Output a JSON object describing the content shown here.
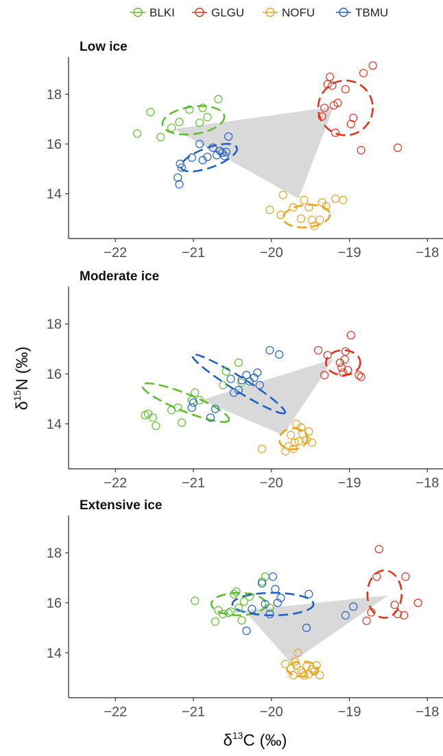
{
  "chart_data": {
    "type": "scatter",
    "legend": {
      "placement": "top-center",
      "entries": [
        {
          "name": "BLKI",
          "color": "#5bbf2c"
        },
        {
          "name": "GLGU",
          "color": "#e0321d"
        },
        {
          "name": "NOFU",
          "color": "#e8a41c"
        },
        {
          "name": "TBMU",
          "color": "#1f5fc6"
        }
      ]
    },
    "xlabel_base": "δ",
    "xlabel_sup": "13",
    "xlabel_tail": "C (‰)",
    "ylabel_base": "δ",
    "ylabel_sup": "15",
    "ylabel_tail": "N (‰)",
    "xlim": [
      -22.6,
      -17.8
    ],
    "ylim": [
      12.2,
      19.5
    ],
    "xticks": [
      -22,
      -21,
      -20,
      -19,
      -18
    ],
    "xtick_labels": [
      "−22",
      "−21",
      "−20",
      "−19",
      "−18"
    ],
    "yticks": [
      14,
      16,
      18
    ],
    "ytick_labels": [
      "14",
      "16",
      "18"
    ],
    "grid": false,
    "hull_color": "#d9d9d9",
    "panels": [
      {
        "title": "Low ice",
        "hull": [
          [
            -21.25,
            16.6
          ],
          [
            -19.2,
            17.5
          ],
          [
            -19.65,
            13.8
          ]
        ],
        "ellipses": [
          {
            "species": "BLKI",
            "cx": -21.0,
            "cy": 16.95,
            "rx": 0.4,
            "ry": 0.55,
            "angle": 8
          },
          {
            "species": "GLGU",
            "cx": -19.05,
            "cy": 17.45,
            "rx": 0.35,
            "ry": 1.1,
            "angle": 0
          },
          {
            "species": "NOFU",
            "cx": -19.55,
            "cy": 13.1,
            "rx": 0.3,
            "ry": 0.45,
            "angle": 5
          },
          {
            "species": "TBMU",
            "cx": -20.8,
            "cy": 15.45,
            "rx": 0.38,
            "ry": 0.4,
            "angle": 20
          }
        ],
        "points": {
          "BLKI": [
            [
              -21.72,
              16.42
            ],
            [
              -21.55,
              17.28
            ],
            [
              -21.42,
              16.28
            ],
            [
              -21.28,
              16.65
            ],
            [
              -21.18,
              16.88
            ],
            [
              -21.05,
              17.38
            ],
            [
              -20.92,
              16.85
            ],
            [
              -20.88,
              17.45
            ],
            [
              -20.82,
              17.08
            ],
            [
              -20.68,
              17.8
            ]
          ],
          "GLGU": [
            [
              -19.35,
              17.1
            ],
            [
              -19.32,
              17.45
            ],
            [
              -19.28,
              18.4
            ],
            [
              -19.25,
              18.7
            ],
            [
              -19.22,
              18.35
            ],
            [
              -19.2,
              17.55
            ],
            [
              -19.18,
              16.45
            ],
            [
              -19.15,
              17.65
            ],
            [
              -19.05,
              18.2
            ],
            [
              -18.98,
              16.8
            ],
            [
              -18.95,
              17.05
            ],
            [
              -18.85,
              15.75
            ],
            [
              -18.82,
              18.85
            ],
            [
              -18.7,
              19.15
            ],
            [
              -18.38,
              15.85
            ]
          ],
          "NOFU": [
            [
              -20.02,
              13.35
            ],
            [
              -19.88,
              13.15
            ],
            [
              -19.85,
              13.95
            ],
            [
              -19.72,
              13.45
            ],
            [
              -19.62,
              13.0
            ],
            [
              -19.58,
              13.75
            ],
            [
              -19.52,
              13.45
            ],
            [
              -19.48,
              12.95
            ],
            [
              -19.45,
              12.7
            ],
            [
              -19.38,
              12.95
            ],
            [
              -19.35,
              13.65
            ],
            [
              -19.3,
              13.5
            ],
            [
              -19.18,
              13.8
            ],
            [
              -19.08,
              13.75
            ]
          ],
          "TBMU": [
            [
              -21.2,
              14.65
            ],
            [
              -21.18,
              14.38
            ],
            [
              -21.17,
              15.2
            ],
            [
              -21.15,
              15.05
            ],
            [
              -21.02,
              15.45
            ],
            [
              -20.92,
              16.0
            ],
            [
              -20.88,
              15.35
            ],
            [
              -20.82,
              15.48
            ],
            [
              -20.75,
              15.85
            ],
            [
              -20.7,
              15.55
            ],
            [
              -20.66,
              15.72
            ],
            [
              -20.63,
              15.65
            ],
            [
              -20.6,
              15.52
            ],
            [
              -20.58,
              15.68
            ],
            [
              -20.55,
              16.3
            ]
          ]
        }
      },
      {
        "title": "Moderate ice",
        "hull": [
          [
            -20.9,
            14.95
          ],
          [
            -19.2,
            16.6
          ],
          [
            -19.85,
            13.55
          ]
        ],
        "ellipses": [
          {
            "species": "BLKI",
            "cx": -21.1,
            "cy": 14.85,
            "rx": 0.6,
            "ry": 0.35,
            "angle": -22
          },
          {
            "species": "GLGU",
            "cx": -19.08,
            "cy": 16.45,
            "rx": 0.22,
            "ry": 0.5,
            "angle": 0
          },
          {
            "species": "NOFU",
            "cx": -19.72,
            "cy": 13.4,
            "rx": 0.18,
            "ry": 0.42,
            "angle": 5
          },
          {
            "species": "TBMU",
            "cx": -20.42,
            "cy": 15.6,
            "rx": 0.7,
            "ry": 0.28,
            "angle": -32
          }
        ],
        "points": {
          "BLKI": [
            [
              -21.62,
              14.35
            ],
            [
              -21.58,
              14.4
            ],
            [
              -21.52,
              14.25
            ],
            [
              -21.48,
              13.92
            ],
            [
              -21.28,
              14.55
            ],
            [
              -21.2,
              14.65
            ],
            [
              -21.15,
              14.05
            ],
            [
              -21.02,
              14.95
            ],
            [
              -20.98,
              15.25
            ],
            [
              -20.92,
              14.95
            ],
            [
              -20.62,
              15.55
            ],
            [
              -20.58,
              16.1
            ],
            [
              -20.42,
              16.45
            ],
            [
              -20.38,
              15.65
            ]
          ],
          "GLGU": [
            [
              -19.4,
              16.95
            ],
            [
              -19.32,
              15.95
            ],
            [
              -19.28,
              16.75
            ],
            [
              -19.12,
              16.45
            ],
            [
              -19.1,
              16.25
            ],
            [
              -19.08,
              16.05
            ],
            [
              -19.06,
              16.58
            ],
            [
              -19.05,
              16.9
            ],
            [
              -19.02,
              16.15
            ],
            [
              -18.98,
              17.55
            ],
            [
              -18.88,
              15.95
            ],
            [
              -18.85,
              15.88
            ]
          ],
          "NOFU": [
            [
              -20.12,
              13.0
            ],
            [
              -19.82,
              12.9
            ],
            [
              -19.78,
              13.1
            ],
            [
              -19.75,
              13.55
            ],
            [
              -19.72,
              13.0
            ],
            [
              -19.7,
              13.25
            ],
            [
              -19.68,
              14.0
            ],
            [
              -19.65,
              13.3
            ],
            [
              -19.62,
              13.85
            ],
            [
              -19.6,
              13.6
            ],
            [
              -19.55,
              13.35
            ],
            [
              -19.52,
              13.7
            ],
            [
              -19.48,
              13.25
            ]
          ],
          "TBMU": [
            [
              -21.02,
              14.65
            ],
            [
              -21.0,
              14.85
            ],
            [
              -20.78,
              14.25
            ],
            [
              -20.72,
              14.6
            ],
            [
              -20.52,
              15.8
            ],
            [
              -20.48,
              15.25
            ],
            [
              -20.42,
              15.35
            ],
            [
              -20.38,
              15.75
            ],
            [
              -20.32,
              15.95
            ],
            [
              -20.28,
              15.7
            ],
            [
              -20.22,
              15.85
            ],
            [
              -20.18,
              16.05
            ],
            [
              -20.15,
              15.55
            ],
            [
              -20.02,
              16.95
            ],
            [
              -19.9,
              16.78
            ]
          ]
        }
      },
      {
        "title": "Extensive ice",
        "hull": [
          [
            -20.35,
            15.7
          ],
          [
            -18.5,
            16.3
          ],
          [
            -19.75,
            13.6
          ]
        ],
        "ellipses": [
          {
            "species": "BLKI",
            "cx": -20.42,
            "cy": 15.95,
            "rx": 0.35,
            "ry": 0.45,
            "angle": 0
          },
          {
            "species": "GLGU",
            "cx": -18.55,
            "cy": 16.35,
            "rx": 0.22,
            "ry": 0.95,
            "angle": 0
          },
          {
            "species": "NOFU",
            "cx": -19.6,
            "cy": 13.35,
            "rx": 0.2,
            "ry": 0.3,
            "angle": 0
          },
          {
            "species": "TBMU",
            "cx": -19.98,
            "cy": 15.95,
            "rx": 0.52,
            "ry": 0.45,
            "angle": 0
          }
        ],
        "points": {
          "BLKI": [
            [
              -20.98,
              16.08
            ],
            [
              -20.72,
              15.25
            ],
            [
              -20.68,
              15.7
            ],
            [
              -20.62,
              15.55
            ],
            [
              -20.55,
              15.6
            ],
            [
              -20.52,
              15.65
            ],
            [
              -20.48,
              16.35
            ],
            [
              -20.45,
              16.45
            ],
            [
              -20.42,
              15.8
            ],
            [
              -20.38,
              15.3
            ],
            [
              -20.35,
              16.05
            ],
            [
              -20.28,
              16.25
            ],
            [
              -20.12,
              16.85
            ],
            [
              -20.08,
              17.05
            ],
            [
              -20.02,
              15.8
            ]
          ],
          "GLGU": [
            [
              -18.78,
              15.28
            ],
            [
              -18.72,
              15.62
            ],
            [
              -18.65,
              17.05
            ],
            [
              -18.62,
              18.15
            ],
            [
              -18.42,
              15.92
            ],
            [
              -18.38,
              15.55
            ],
            [
              -18.3,
              15.5
            ],
            [
              -18.28,
              17.05
            ],
            [
              -18.12,
              16.0
            ]
          ],
          "NOFU": [
            [
              -19.82,
              13.55
            ],
            [
              -19.75,
              13.38
            ],
            [
              -19.72,
              13.1
            ],
            [
              -19.7,
              13.65
            ],
            [
              -19.68,
              13.5
            ],
            [
              -19.66,
              14.0
            ],
            [
              -19.62,
              13.3
            ],
            [
              -19.6,
              13.2
            ],
            [
              -19.58,
              13.1
            ],
            [
              -19.55,
              13.45
            ],
            [
              -19.52,
              13.15
            ],
            [
              -19.48,
              13.35
            ],
            [
              -19.45,
              13.25
            ],
            [
              -19.42,
              13.5
            ],
            [
              -19.38,
              13.1
            ]
          ],
          "TBMU": [
            [
              -20.32,
              14.88
            ],
            [
              -20.25,
              15.75
            ],
            [
              -20.12,
              16.78
            ],
            [
              -20.08,
              15.95
            ],
            [
              -20.02,
              15.55
            ],
            [
              -19.98,
              17.05
            ],
            [
              -19.95,
              16.55
            ],
            [
              -19.92,
              16.0
            ],
            [
              -19.88,
              16.2
            ],
            [
              -19.55,
              15.0
            ],
            [
              -19.52,
              16.35
            ],
            [
              -19.05,
              15.5
            ],
            [
              -18.95,
              15.85
            ]
          ]
        }
      }
    ]
  }
}
